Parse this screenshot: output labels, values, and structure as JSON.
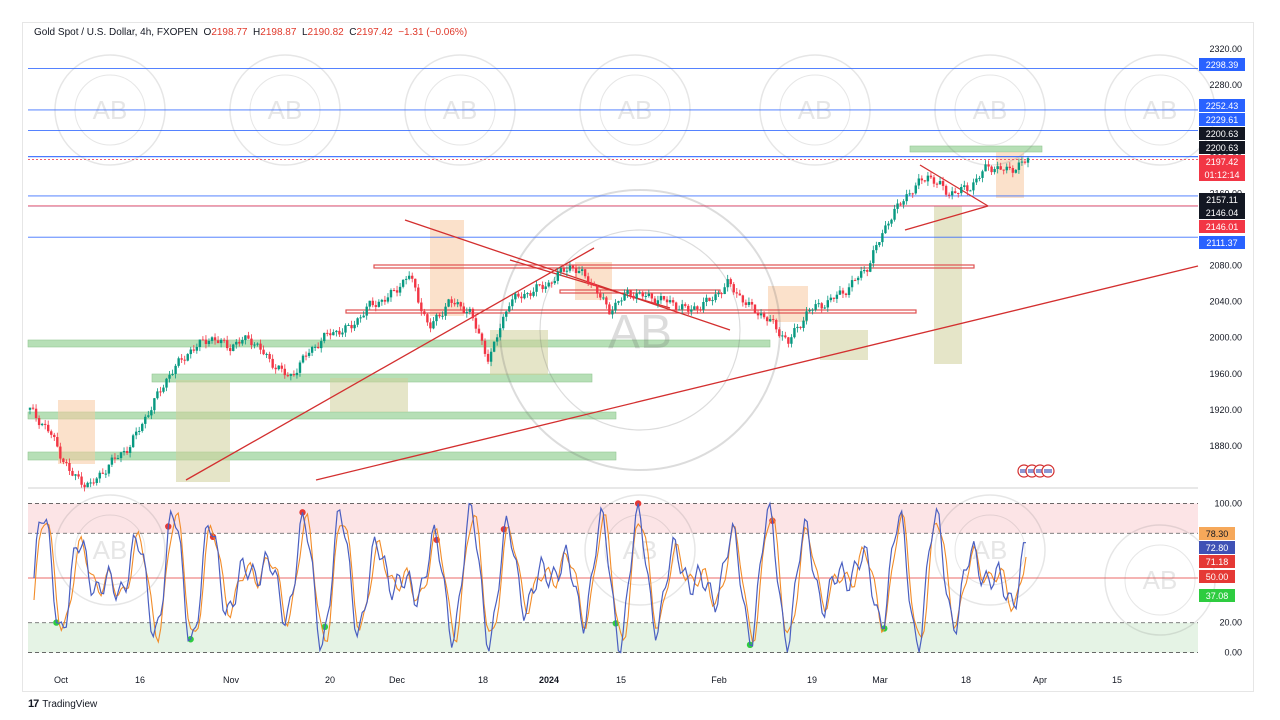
{
  "header": {
    "symbol": "Gold Spot / U.S. Dollar, 4h, FXOPEN",
    "o_label": "O",
    "o_value": "2198.77",
    "h_label": "H",
    "h_value": "2198.87",
    "l_label": "L",
    "l_value": "2190.82",
    "c_label": "C",
    "c_value": "2197.42",
    "change": "−1.31 (−0.06%)"
  },
  "footer": {
    "logo_text": "17",
    "brand": "TradingView"
  },
  "watermark": {
    "text": "ARABIAN BUSINESS ACADEMY",
    "initials": "AB"
  },
  "colors": {
    "up": "#089981",
    "down": "#f23645",
    "price_line_blue": "#2962ff",
    "trendline_red": "#d32f2f",
    "zone_green": "#7bc67b",
    "zone_orange": "#f7c9a0",
    "zone_olive": "#cfcf9a",
    "stoch_k": "#4a5fc1",
    "stoch_d": "#f28c28"
  },
  "chart_data": [
    {
      "type": "candlestick",
      "title": "Gold Spot / U.S. Dollar, 4h, FXOPEN",
      "ylim": [
        1840,
        2330
      ],
      "y_ticks": [
        1880,
        1920,
        1960,
        2000,
        2040,
        2080,
        2120,
        2160,
        2200,
        2240,
        2280,
        2320
      ],
      "y_tick_labels": [
        "1880.00",
        "1920.00",
        "1960.00",
        "2000.00",
        "2040.00",
        "2080.00",
        "2120.00",
        "2160.00",
        "2200.00",
        "2240.00",
        "2280.00",
        "2320.00"
      ],
      "x_ticks": [
        "Oct",
        "16",
        "Nov",
        "20",
        "Dec",
        "18",
        "2024",
        "15",
        "Feb",
        "19",
        "Mar",
        "18",
        "Apr",
        "15"
      ],
      "series": [
        {
          "name": "close_path",
          "x": [
            0,
            2,
            4,
            6,
            8,
            10,
            12,
            14,
            16,
            18,
            20,
            22,
            24,
            26,
            28,
            30,
            32,
            34,
            36,
            38,
            40,
            42,
            44,
            46,
            48,
            50,
            52,
            54,
            56,
            58,
            60,
            62,
            64,
            66,
            68,
            70,
            72,
            74,
            76,
            78,
            80,
            82,
            84,
            86,
            88,
            90,
            92,
            94,
            96,
            98,
            100
          ],
          "values": [
            1920,
            1895,
            1850,
            1835,
            1860,
            1880,
            1920,
            1960,
            1985,
            2000,
            1990,
            2000,
            1975,
            1955,
            1985,
            2005,
            2010,
            2035,
            2045,
            2070,
            2010,
            2040,
            2030,
            1975,
            2040,
            2050,
            2060,
            2080,
            2065,
            2030,
            2050,
            2045,
            2040,
            2030,
            2040,
            2060,
            2035,
            2020,
            1995,
            2030,
            2040,
            2055,
            2080,
            2130,
            2160,
            2180,
            2160,
            2165,
            2190,
            2185,
            2197
          ]
        }
      ],
      "horizontal_levels": [
        {
          "value": 2298.39,
          "label": "2298.39",
          "color": "#2962ff",
          "label_bg": "#2962ff"
        },
        {
          "value": 2252.43,
          "label": "2252.43",
          "color": "#2962ff",
          "label_bg": "#2962ff"
        },
        {
          "value": 2229.61,
          "label": "2229.61",
          "color": "#2962ff",
          "label_bg": "#2962ff"
        },
        {
          "value": 2200.63,
          "label": "2200.63",
          "color": "#131722",
          "label_bg": "#131722"
        },
        {
          "value": 2200.63,
          "label": "2200.63",
          "color": "#131722",
          "label_bg": "#131722"
        },
        {
          "value": 2197.42,
          "label": "2197.42",
          "color": "#f23645",
          "label_bg": "#f23645",
          "sub_label": "01:12:14"
        },
        {
          "value": 2157.11,
          "label": "2157.11",
          "color": "#131722",
          "label_bg": "#131722"
        },
        {
          "value": 2146.04,
          "label": "2146.04",
          "color": "#131722",
          "label_bg": "#131722"
        },
        {
          "value": 2146.01,
          "label": "2146.01",
          "color": "#f23645",
          "label_bg": "#f23645"
        },
        {
          "value": 2111.37,
          "label": "2111.37",
          "color": "#2962ff",
          "label_bg": "#2962ff"
        }
      ]
    },
    {
      "type": "line",
      "title": "",
      "ylim": [
        -5,
        105
      ],
      "y_ticks": [
        0,
        20,
        50,
        80,
        100
      ],
      "y_tick_labels": [
        "0.00",
        "20.00",
        "",
        "",
        "100.00"
      ],
      "value_labels": [
        {
          "value": 78.3,
          "label": "78.30",
          "bg": "#f6a85a"
        },
        {
          "value": 72.8,
          "label": "72.80",
          "bg": "#3f51b5"
        },
        {
          "value": 71.18,
          "label": "71.18",
          "bg": "#e53935"
        },
        {
          "value": 50.0,
          "label": "50.00",
          "bg": "#e53935"
        },
        {
          "value": 37.08,
          "label": "37.08",
          "bg": "#2ecc40"
        }
      ],
      "bands": {
        "overbought": [
          80,
          100
        ],
        "oversold": [
          0,
          20
        ]
      }
    }
  ]
}
